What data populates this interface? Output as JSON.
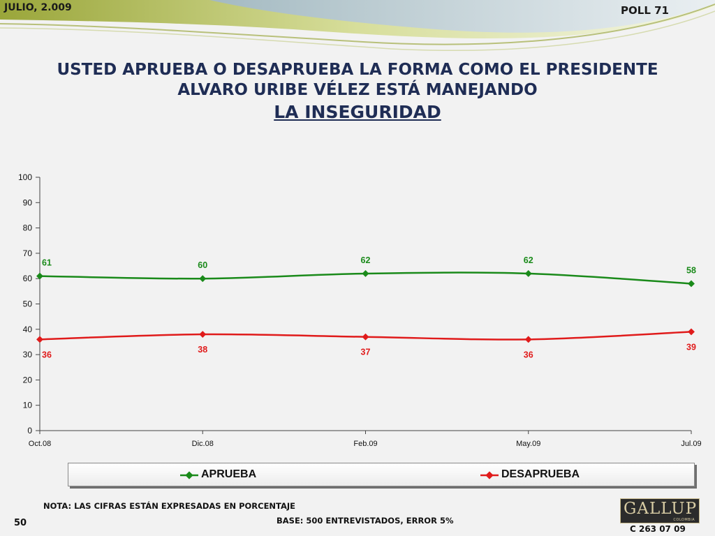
{
  "header": {
    "date": "JULIO, 2.009",
    "poll": "POLL 71"
  },
  "title": {
    "line1": "USTED APRUEBA O DESAPRUEBA LA FORMA COMO EL PRESIDENTE",
    "line2": "ALVARO URIBE VÉLEZ ESTÁ MANEJANDO",
    "line3": "LA INSEGURIDAD"
  },
  "chart_data": {
    "type": "line",
    "categories": [
      "Oct.08",
      "Dic.08",
      "Feb.09",
      "May.09",
      "Jul.09"
    ],
    "series": [
      {
        "name": "APRUEBA",
        "values": [
          61,
          60,
          62,
          62,
          58
        ],
        "color": "#1a8a1a"
      },
      {
        "name": "DESAPRUEBA",
        "values": [
          36,
          38,
          37,
          36,
          39
        ],
        "color": "#e01b1b"
      }
    ],
    "ylim": [
      0,
      100
    ],
    "yticks": [
      0,
      10,
      20,
      30,
      40,
      50,
      60,
      70,
      80,
      90,
      100
    ],
    "grid": false,
    "legend": "bottom"
  },
  "legend": {
    "items": [
      "APRUEBA",
      "DESAPRUEBA"
    ]
  },
  "footer": {
    "note": "NOTA: LAS CIFRAS ESTÁN EXPRESADAS EN PORCENTAJE",
    "base": "BASE: 500 ENTREVISTADOS, ERROR 5%",
    "page": "50",
    "code": "C 263 07 09",
    "logo_name": "GALLUP",
    "logo_sub": "COLOMBIA"
  }
}
